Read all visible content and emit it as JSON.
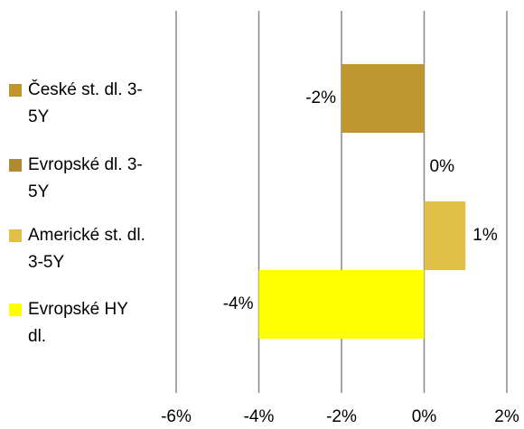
{
  "chart_data": {
    "type": "bar",
    "orientation": "horizontal",
    "series": [
      {
        "name": "České st. dl. 3-5Y",
        "color": "#c0962e",
        "values": [
          -2
        ],
        "value_labels": [
          "-2%"
        ]
      },
      {
        "name": "Evropské dl. 3-5Y",
        "color": "#b08a30",
        "values": [
          0
        ],
        "value_labels": [
          "0%"
        ]
      },
      {
        "name": "Americké st. dl. 3-5Y",
        "color": "#e2bf48",
        "values": [
          1
        ],
        "value_labels": [
          "1%"
        ]
      },
      {
        "name": "Evropské HY dl.",
        "color": "#ffff00",
        "values": [
          -4
        ],
        "value_labels": [
          "-4%"
        ]
      }
    ],
    "xlim": [
      -6,
      2
    ],
    "xticks": [
      {
        "value": -6,
        "label": "-6%"
      },
      {
        "value": -4,
        "label": "-4%"
      },
      {
        "value": -2,
        "label": "-2%"
      },
      {
        "value": 0,
        "label": "0%"
      },
      {
        "value": 2,
        "label": "2%"
      }
    ],
    "grid": true,
    "legend": "left"
  }
}
